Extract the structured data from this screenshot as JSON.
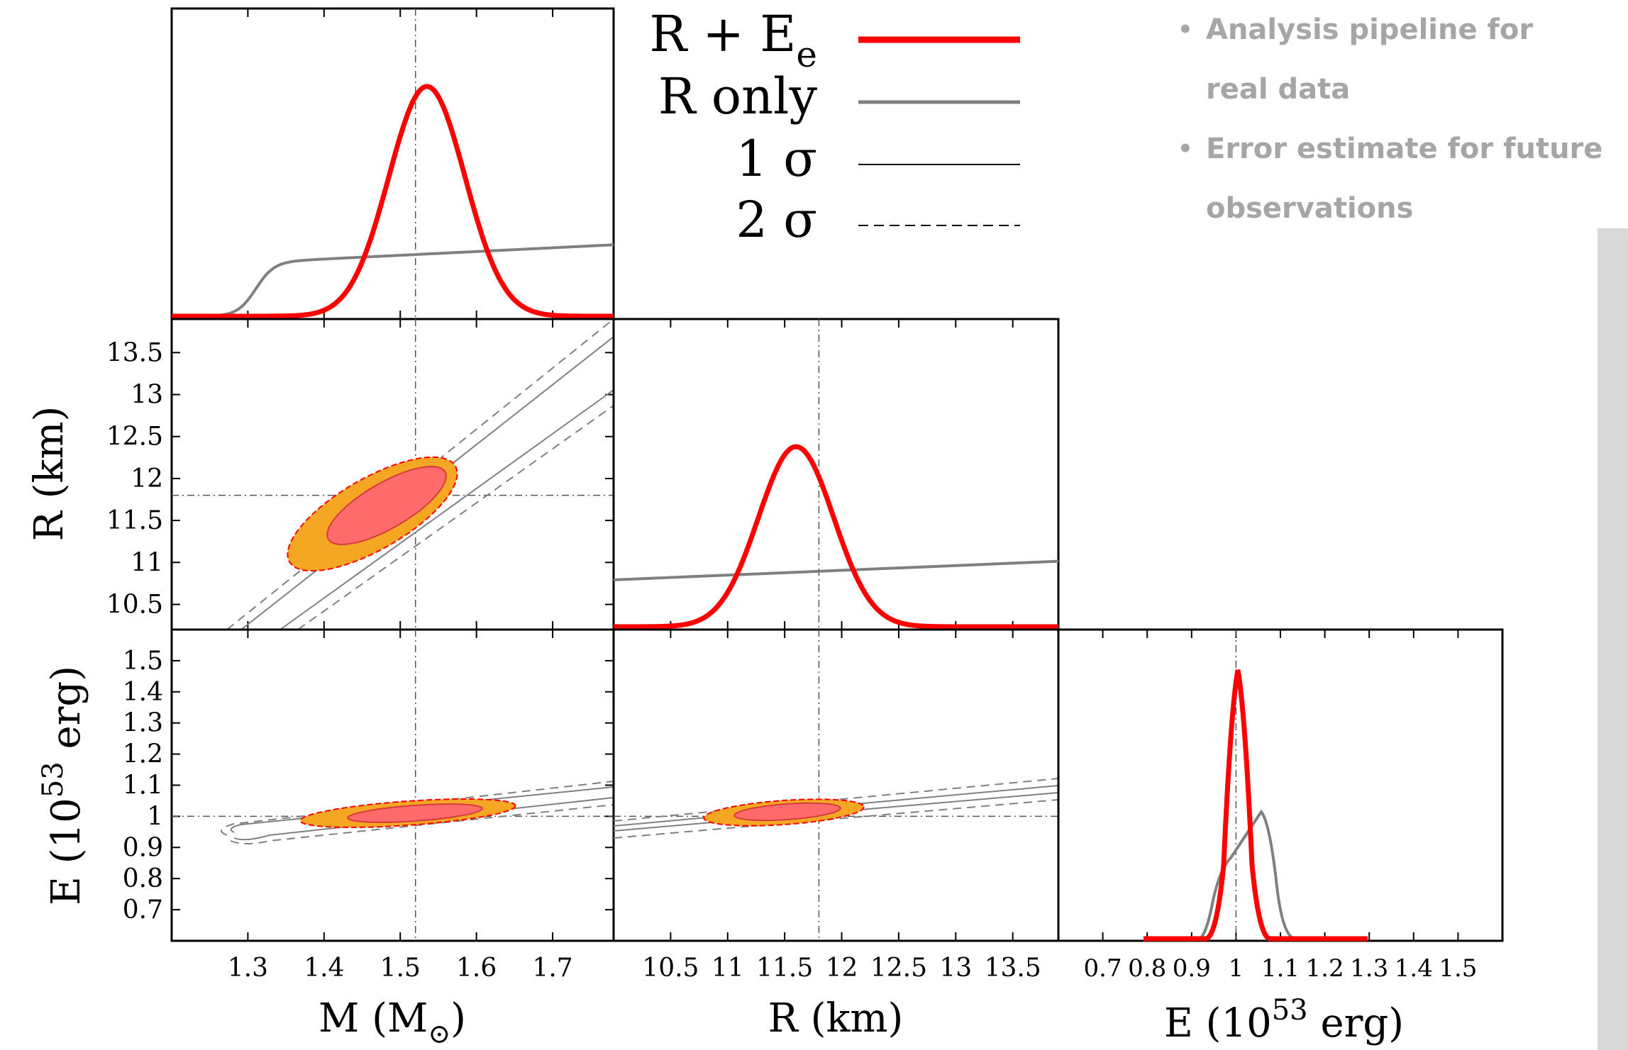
{
  "bullets": [
    {
      "text": "Analysis pipeline for real data"
    },
    {
      "text": "Error estimate for future observations"
    }
  ],
  "legend": [
    {
      "label": "R + E",
      "sub": "e",
      "style": "thick-red"
    },
    {
      "label": "R only",
      "style": "gray"
    },
    {
      "label": "1 σ",
      "style": "thin-solid"
    },
    {
      "label": "2 σ",
      "style": "dashed"
    }
  ],
  "colors": {
    "red": "#ff0000",
    "gray": "#808080",
    "orange": "#f5a623",
    "pink": "#ff6b6b",
    "sidebar": "#d9d9d9"
  },
  "chart_data": {
    "type": "corner",
    "true_values": {
      "M": 1.52,
      "R": 11.8,
      "E": 1.0
    },
    "panels": [
      {
        "id": "M-marginal",
        "x": "M",
        "xlim": [
          1.2,
          1.78
        ]
      },
      {
        "id": "R-marginal",
        "x": "R",
        "xlim": [
          10.0,
          13.9
        ]
      },
      {
        "id": "E-marginal",
        "x": "E",
        "xlim": [
          0.6,
          1.6
        ]
      },
      {
        "id": "MR",
        "x": "M",
        "y": "R",
        "xlim": [
          1.2,
          1.78
        ],
        "ylim": [
          10.2,
          13.9
        ]
      },
      {
        "id": "ME",
        "x": "M",
        "y": "E",
        "xlim": [
          1.2,
          1.78
        ],
        "ylim": [
          0.6,
          1.6
        ]
      },
      {
        "id": "RE",
        "x": "R",
        "y": "E",
        "xlim": [
          10.0,
          13.9
        ],
        "ylim": [
          0.6,
          1.6
        ]
      }
    ],
    "axis_labels": {
      "M": {
        "main": "M (M",
        "sub": "⊙",
        "tail": ")"
      },
      "R": {
        "main": "R (km)"
      },
      "E": {
        "main": "E (10",
        "sup": "53",
        "tail": " erg)"
      }
    },
    "ticks": {
      "M": [
        "1.3",
        "1.4",
        "1.5",
        "1.6",
        "1.7"
      ],
      "R": [
        "10.5",
        "11",
        "11.5",
        "12",
        "12.5",
        "13",
        "13.5"
      ],
      "E_x": [
        "0.7",
        "0.8",
        "0.9",
        "1",
        "1.1",
        "1.2",
        "1.3",
        "1.4",
        "1.5"
      ],
      "E_y": [
        "0.7",
        "0.8",
        "0.9",
        "1",
        "1.1",
        "1.2",
        "1.3",
        "1.4",
        "1.5"
      ]
    },
    "marginals": {
      "M": {
        "R+E": {
          "mean": 1.535,
          "sigma": 0.05
        },
        "R only": {
          "step_at": 1.31,
          "start": 0.0,
          "slope_from": 0.16,
          "slope_to": 0.23
        }
      },
      "R": {
        "R+E": {
          "mean": 11.6,
          "sigma": 0.33
        },
        "R only": {
          "from": 0.16,
          "to": 0.22
        }
      },
      "E": {
        "R+E": {
          "mean": 1.005,
          "sigma": 0.016
        },
        "R only": {
          "peak": 1.06,
          "shoulder": 0.98
        }
      }
    },
    "contours": {
      "MR": {
        "center": [
          1.535,
          11.6
        ],
        "sigma1": [
          0.07,
          0.32
        ],
        "sigma2": [
          0.1,
          0.48
        ],
        "corr": 0.97
      },
      "ME": {
        "center": [
          1.535,
          1.005
        ],
        "sigma1": [
          0.06,
          0.012
        ],
        "sigma2": [
          0.095,
          0.02
        ],
        "corr": 0.9
      },
      "RE": {
        "center": [
          11.6,
          1.005
        ],
        "sigma1": [
          0.45,
          0.012
        ],
        "sigma2": [
          0.7,
          0.02
        ],
        "corr": 0.9
      }
    }
  }
}
